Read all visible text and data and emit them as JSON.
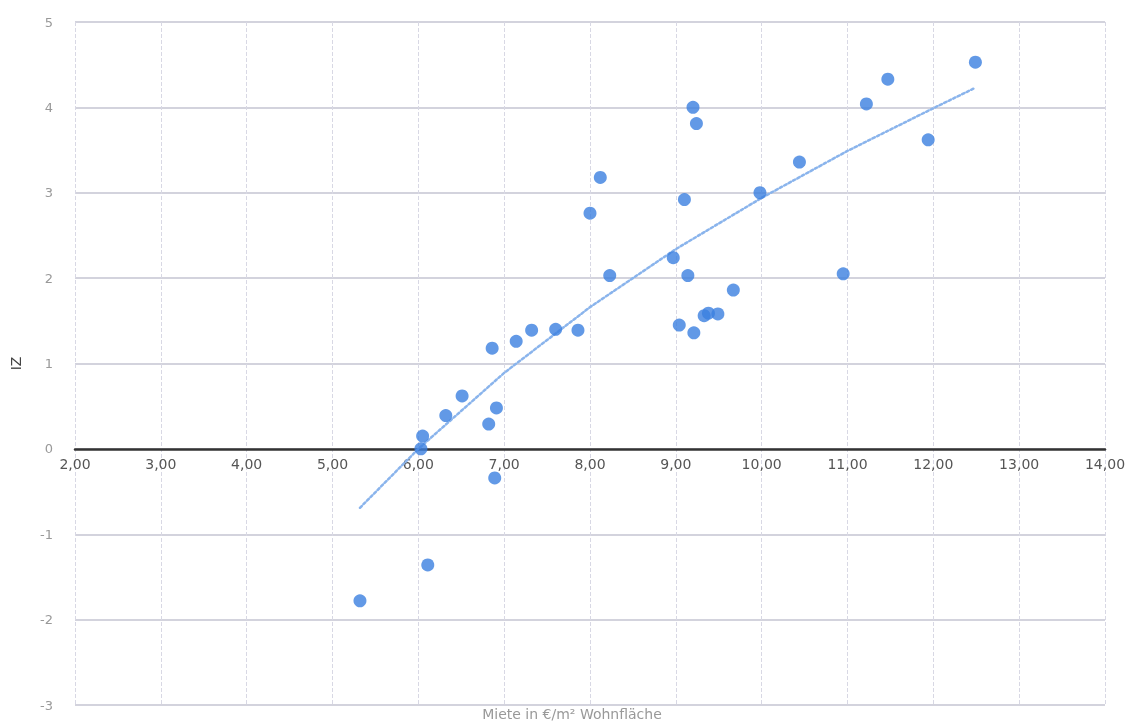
{
  "chart_data": {
    "type": "scatter",
    "xlabel": "Miete in €/m² Wohnfläche",
    "ylabel": "IZ",
    "xlim": [
      2,
      14
    ],
    "xticks": [
      {
        "value": 2,
        "label": "2,00"
      },
      {
        "value": 3,
        "label": "3,00"
      },
      {
        "value": 4,
        "label": "4,00"
      },
      {
        "value": 5,
        "label": "5,00"
      },
      {
        "value": 6,
        "label": "6,00"
      },
      {
        "value": 7,
        "label": "7,00"
      },
      {
        "value": 8,
        "label": "8,00"
      },
      {
        "value": 9,
        "label": "9,00"
      },
      {
        "value": 10,
        "label": "10,00"
      },
      {
        "value": 11,
        "label": "11,00"
      },
      {
        "value": 12,
        "label": "12,00"
      },
      {
        "value": 13,
        "label": "13,00"
      },
      {
        "value": 14,
        "label": "14,00"
      }
    ],
    "ylim": [
      -3,
      5
    ],
    "yticks": [
      -3,
      -2,
      -1,
      0,
      1,
      2,
      3,
      4,
      5
    ],
    "grid": true,
    "marker": "circle",
    "series": [
      {
        "color": "#3b7fe0",
        "x": [
          6.05,
          6.03,
          6.32,
          6.51,
          6.82,
          6.86,
          6.91,
          6.89,
          7.14,
          7.32,
          7.6,
          7.86,
          8.0,
          8.12,
          8.23,
          8.97,
          9.04,
          9.1,
          9.14,
          9.2,
          9.21,
          9.24,
          9.33,
          9.38,
          9.49,
          9.67,
          9.98,
          10.44,
          10.95,
          11.22,
          11.47,
          11.94,
          12.49,
          6.11,
          5.32
        ],
        "values": [
          0.15,
          0.0,
          0.39,
          0.62,
          0.29,
          1.18,
          0.48,
          -0.34,
          1.26,
          1.39,
          1.4,
          1.39,
          2.76,
          3.18,
          2.03,
          2.24,
          1.45,
          2.92,
          2.03,
          4.0,
          1.36,
          3.81,
          1.56,
          1.59,
          1.58,
          1.86,
          3.0,
          3.36,
          2.05,
          4.04,
          4.33,
          3.62,
          4.53,
          -1.36,
          -1.78
        ]
      },
      {
        "type": "line",
        "color": "#8ab4ec",
        "line_style": "dotted",
        "marker": "none",
        "x": [
          5.32,
          6,
          7,
          8,
          9,
          10,
          11,
          12,
          12.49
        ],
        "values": [
          -0.69,
          0.0,
          0.89,
          1.66,
          2.34,
          2.94,
          3.49,
          3.99,
          4.23
        ]
      }
    ]
  }
}
